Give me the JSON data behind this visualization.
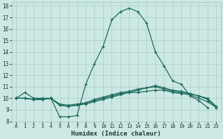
{
  "title": "",
  "xlabel": "Humidex (Indice chaleur)",
  "ylabel": "",
  "xlim": [
    -0.5,
    23.5
  ],
  "ylim": [
    8,
    18.3
  ],
  "xticks": [
    0,
    1,
    2,
    3,
    4,
    5,
    6,
    7,
    8,
    9,
    10,
    11,
    12,
    13,
    14,
    15,
    16,
    17,
    18,
    19,
    20,
    21,
    22,
    23
  ],
  "yticks": [
    8,
    9,
    10,
    11,
    12,
    13,
    14,
    15,
    16,
    17,
    18
  ],
  "background_color": "#cce8e4",
  "grid_color": "#aed0cb",
  "line_color": "#1a6b5a",
  "lines": [
    {
      "x": [
        0,
        1,
        2,
        3,
        4,
        5,
        6,
        7,
        8,
        9,
        10,
        11,
        12,
        13,
        14,
        15,
        16,
        17,
        18,
        19,
        20,
        21,
        22,
        23
      ],
      "y": [
        10.0,
        10.5,
        10.0,
        10.0,
        10.0,
        8.4,
        8.4,
        8.5,
        11.2,
        13.0,
        14.5,
        16.8,
        17.5,
        17.8,
        17.5,
        16.5,
        14.0,
        12.8,
        11.5,
        11.2,
        10.2,
        9.8,
        9.2,
        null
      ]
    },
    {
      "x": [
        0,
        1,
        2,
        3,
        4,
        5,
        6,
        7,
        8,
        9,
        10,
        11,
        12,
        13,
        14,
        15,
        16,
        17,
        18,
        19,
        20,
        21,
        22,
        23
      ],
      "y": [
        10.0,
        10.0,
        9.9,
        9.9,
        10.0,
        9.5,
        9.4,
        9.5,
        9.6,
        9.8,
        10.0,
        10.2,
        10.4,
        10.5,
        10.5,
        10.6,
        10.7,
        10.7,
        10.5,
        10.4,
        10.3,
        10.0,
        9.7,
        9.2
      ]
    },
    {
      "x": [
        0,
        1,
        2,
        3,
        4,
        5,
        6,
        7,
        8,
        9,
        10,
        11,
        12,
        13,
        14,
        15,
        16,
        17,
        18,
        19,
        20,
        21,
        22,
        23
      ],
      "y": [
        10.0,
        10.0,
        9.9,
        9.9,
        10.0,
        9.4,
        9.3,
        9.4,
        9.6,
        9.9,
        10.1,
        10.3,
        10.5,
        10.6,
        10.8,
        10.9,
        11.0,
        10.8,
        10.6,
        10.5,
        10.4,
        10.2,
        9.9,
        9.2
      ]
    },
    {
      "x": [
        0,
        1,
        2,
        3,
        4,
        5,
        6,
        7,
        8,
        9,
        10,
        11,
        12,
        13,
        14,
        15,
        16,
        17,
        18,
        19,
        20,
        21,
        22,
        23
      ],
      "y": [
        10.0,
        10.0,
        9.9,
        9.9,
        10.0,
        9.4,
        9.3,
        9.4,
        9.5,
        9.7,
        9.9,
        10.1,
        10.3,
        10.5,
        10.7,
        10.9,
        11.1,
        10.9,
        10.7,
        10.6,
        10.4,
        10.2,
        10.0,
        9.3
      ]
    }
  ]
}
